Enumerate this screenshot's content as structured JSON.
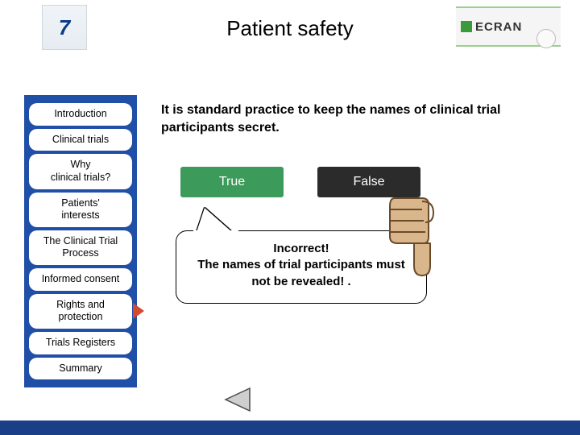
{
  "header": {
    "title": "Patient safety",
    "logo_left_text": "7",
    "logo_right_text": "ECRAN"
  },
  "sidebar": {
    "bg_color": "#1f4fa6",
    "item_bg": "#ffffff",
    "active_pointer_color": "#d34a2e",
    "items": [
      {
        "label": "Introduction",
        "active": false
      },
      {
        "label": "Clinical trials",
        "active": false
      },
      {
        "label": "Why\nclinical trials?",
        "active": false
      },
      {
        "label": "Patients'\ninterests",
        "active": false
      },
      {
        "label": "The Clinical Trial\nProcess",
        "active": false
      },
      {
        "label": "Informed consent",
        "active": false
      },
      {
        "label": "Rights and\nprotection",
        "active": true
      },
      {
        "label": "Trials Registers",
        "active": false
      },
      {
        "label": "Summary",
        "active": false
      }
    ]
  },
  "content": {
    "question": "It is standard practice to keep the names of clinical trial participants secret.",
    "answers": {
      "true_label": "True",
      "false_label": "False",
      "true_color": "#3c9a5a",
      "false_color": "#2b2b2b"
    },
    "feedback": {
      "heading": "Incorrect!",
      "body": "The names of trial participants must not be revealed! ."
    }
  },
  "icons": {
    "thumbs_down_fill": "#d9b68c",
    "thumbs_down_stroke": "#6b4a2a",
    "back_arrow_fill": "#cfcfcf",
    "back_arrow_stroke": "#4a4a4a"
  },
  "footer": {
    "bar_color": "#1b3f87"
  }
}
